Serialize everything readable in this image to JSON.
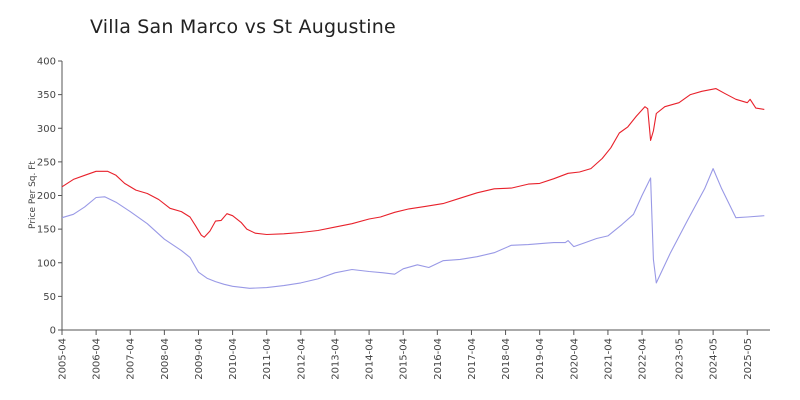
{
  "chart_data": {
    "type": "line",
    "title": "Villa San Marco vs St Augustine",
    "xlabel": "",
    "ylabel": "Price Per Sq. Ft",
    "ylim": [
      0,
      400
    ],
    "yticks": [
      0,
      50,
      100,
      150,
      200,
      250,
      300,
      350,
      400
    ],
    "xlim": [
      "2005-04",
      "2026-01"
    ],
    "xticks": [
      "2005-04",
      "2006-04",
      "2007-04",
      "2008-04",
      "2009-04",
      "2010-04",
      "2011-04",
      "2012-04",
      "2013-04",
      "2014-04",
      "2015-04",
      "2016-04",
      "2017-04",
      "2018-04",
      "2019-04",
      "2020-04",
      "2021-04",
      "2022-04",
      "2023-05",
      "2024-05",
      "2025-05"
    ],
    "series": [
      {
        "color": "#e8212b",
        "points": [
          [
            "2005-04",
            213
          ],
          [
            "2005-08",
            224
          ],
          [
            "2005-12",
            230
          ],
          [
            "2006-04",
            236
          ],
          [
            "2006-08",
            236
          ],
          [
            "2006-11",
            230
          ],
          [
            "2007-02",
            218
          ],
          [
            "2007-06",
            208
          ],
          [
            "2007-10",
            203
          ],
          [
            "2008-02",
            194
          ],
          [
            "2008-06",
            181
          ],
          [
            "2008-10",
            176
          ],
          [
            "2009-01",
            168
          ],
          [
            "2009-03",
            155
          ],
          [
            "2009-05",
            141
          ],
          [
            "2009-06",
            138
          ],
          [
            "2009-08",
            147
          ],
          [
            "2009-10",
            162
          ],
          [
            "2009-12",
            163
          ],
          [
            "2010-02",
            173
          ],
          [
            "2010-04",
            170
          ],
          [
            "2010-07",
            160
          ],
          [
            "2010-09",
            150
          ],
          [
            "2010-12",
            144
          ],
          [
            "2011-04",
            142
          ],
          [
            "2011-10",
            143
          ],
          [
            "2012-04",
            145
          ],
          [
            "2012-10",
            148
          ],
          [
            "2013-04",
            153
          ],
          [
            "2013-10",
            158
          ],
          [
            "2014-04",
            165
          ],
          [
            "2014-08",
            168
          ],
          [
            "2015-01",
            175
          ],
          [
            "2015-06",
            180
          ],
          [
            "2015-12",
            184
          ],
          [
            "2016-06",
            188
          ],
          [
            "2016-12",
            196
          ],
          [
            "2017-06",
            204
          ],
          [
            "2017-12",
            210
          ],
          [
            "2018-06",
            211
          ],
          [
            "2018-12",
            217
          ],
          [
            "2019-04",
            218
          ],
          [
            "2019-09",
            225
          ],
          [
            "2020-02",
            233
          ],
          [
            "2020-06",
            235
          ],
          [
            "2020-10",
            240
          ],
          [
            "2021-02",
            255
          ],
          [
            "2021-05",
            271
          ],
          [
            "2021-08",
            293
          ],
          [
            "2021-11",
            302
          ],
          [
            "2022-02",
            318
          ],
          [
            "2022-05",
            332
          ],
          [
            "2022-06",
            329
          ],
          [
            "2022-07",
            282
          ],
          [
            "2022-08",
            296
          ],
          [
            "2022-09",
            322
          ],
          [
            "2022-12",
            332
          ],
          [
            "2023-05",
            338
          ],
          [
            "2023-09",
            350
          ],
          [
            "2024-01",
            355
          ],
          [
            "2024-06",
            359
          ],
          [
            "2024-09",
            352
          ],
          [
            "2025-01",
            343
          ],
          [
            "2025-05",
            338
          ],
          [
            "2025-06",
            343
          ],
          [
            "2025-08",
            330
          ],
          [
            "2025-11",
            328
          ]
        ]
      },
      {
        "color": "#9999e6",
        "points": [
          [
            "2005-04",
            167
          ],
          [
            "2005-08",
            172
          ],
          [
            "2005-12",
            183
          ],
          [
            "2006-04",
            197
          ],
          [
            "2006-07",
            198
          ],
          [
            "2006-11",
            190
          ],
          [
            "2007-04",
            176
          ],
          [
            "2007-10",
            158
          ],
          [
            "2008-04",
            135
          ],
          [
            "2008-10",
            118
          ],
          [
            "2009-01",
            108
          ],
          [
            "2009-04",
            86
          ],
          [
            "2009-07",
            77
          ],
          [
            "2009-10",
            72
          ],
          [
            "2010-01",
            68
          ],
          [
            "2010-04",
            65
          ],
          [
            "2010-10",
            62
          ],
          [
            "2011-04",
            63
          ],
          [
            "2011-10",
            66
          ],
          [
            "2012-04",
            70
          ],
          [
            "2012-10",
            76
          ],
          [
            "2013-04",
            85
          ],
          [
            "2013-10",
            90
          ],
          [
            "2014-04",
            87
          ],
          [
            "2014-09",
            85
          ],
          [
            "2015-01",
            83
          ],
          [
            "2015-04",
            91
          ],
          [
            "2015-09",
            97
          ],
          [
            "2016-01",
            93
          ],
          [
            "2016-06",
            103
          ],
          [
            "2016-12",
            105
          ],
          [
            "2017-06",
            109
          ],
          [
            "2017-12",
            115
          ],
          [
            "2018-06",
            126
          ],
          [
            "2018-12",
            127
          ],
          [
            "2019-06",
            129
          ],
          [
            "2019-09",
            130
          ],
          [
            "2020-01",
            130
          ],
          [
            "2020-02",
            133
          ],
          [
            "2020-04",
            124
          ],
          [
            "2020-08",
            130
          ],
          [
            "2020-12",
            136
          ],
          [
            "2021-04",
            140
          ],
          [
            "2021-09",
            157
          ],
          [
            "2022-01",
            172
          ],
          [
            "2022-04",
            200
          ],
          [
            "2022-07",
            226
          ],
          [
            "2022-08",
            105
          ],
          [
            "2022-09",
            70
          ],
          [
            "2023-02",
            115
          ],
          [
            "2023-08",
            163
          ],
          [
            "2024-02",
            210
          ],
          [
            "2024-05",
            240
          ],
          [
            "2024-08",
            210
          ],
          [
            "2025-01",
            167
          ],
          [
            "2025-05",
            168
          ],
          [
            "2025-11",
            170
          ]
        ]
      }
    ]
  }
}
